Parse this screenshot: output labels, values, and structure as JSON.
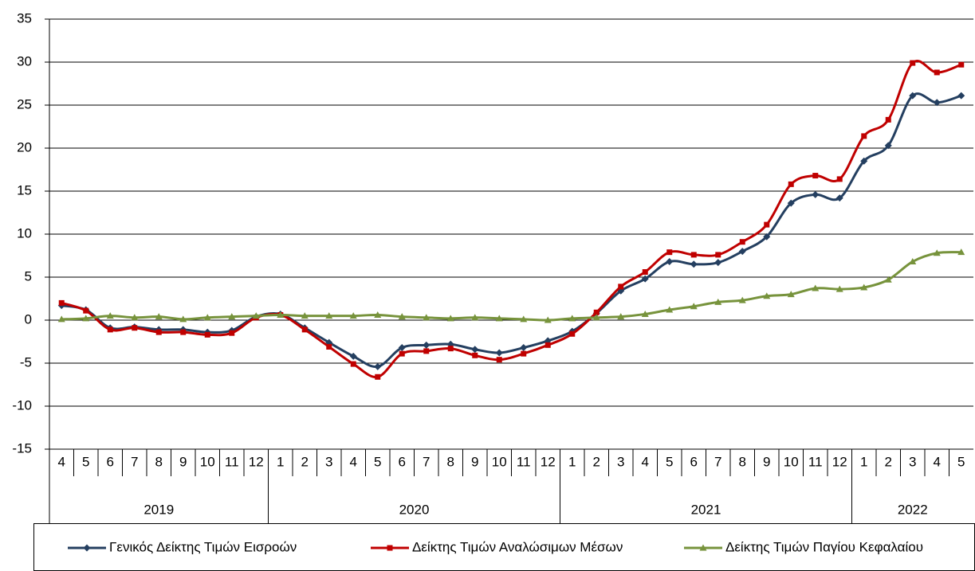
{
  "chart_data": {
    "type": "line",
    "category_groups": [
      {
        "label": "2019",
        "categories": [
          "4",
          "5",
          "6",
          "7",
          "8",
          "9",
          "10",
          "11",
          "12"
        ]
      },
      {
        "label": "2020",
        "categories": [
          "1",
          "2",
          "3",
          "4",
          "5",
          "6",
          "7",
          "8",
          "9",
          "10",
          "11",
          "12"
        ]
      },
      {
        "label": "2021",
        "categories": [
          "1",
          "2",
          "3",
          "4",
          "5",
          "6",
          "7",
          "8",
          "9",
          "10",
          "11",
          "12"
        ]
      },
      {
        "label": "2022",
        "categories": [
          "1",
          "2",
          "3",
          "4",
          "5"
        ]
      }
    ],
    "series": [
      {
        "name": "Γενικός Δείκτης Τιμών Εισροών",
        "color": "#243f60",
        "marker": "diamond",
        "values": [
          1.7,
          1.2,
          -0.9,
          -0.8,
          -1.1,
          -1.1,
          -1.4,
          -1.2,
          0.4,
          0.7,
          -0.9,
          -2.6,
          -4.2,
          -5.4,
          -3.2,
          -2.9,
          -2.8,
          -3.4,
          -3.8,
          -3.2,
          -2.4,
          -1.3,
          0.8,
          3.4,
          4.8,
          6.8,
          6.5,
          6.7,
          8.0,
          9.7,
          13.6,
          14.6,
          14.2,
          18.5,
          20.3,
          26.1,
          25.3,
          26.1
        ]
      },
      {
        "name": "Δείκτης Τιμών Αναλώσιμων Μέσων",
        "color": "#c00000",
        "marker": "square",
        "values": [
          2.0,
          1.1,
          -1.1,
          -0.9,
          -1.4,
          -1.4,
          -1.7,
          -1.5,
          0.3,
          0.6,
          -1.1,
          -3.1,
          -5.1,
          -6.6,
          -3.9,
          -3.6,
          -3.3,
          -4.1,
          -4.6,
          -3.9,
          -2.9,
          -1.6,
          0.9,
          3.9,
          5.6,
          7.9,
          7.6,
          7.6,
          9.1,
          11.1,
          15.8,
          16.8,
          16.4,
          21.4,
          23.3,
          29.9,
          28.8,
          29.7
        ]
      },
      {
        "name": "Δείκτης Τιμών Παγίου Κεφαλαίου",
        "color": "#77933c",
        "marker": "triangle",
        "values": [
          0.1,
          0.2,
          0.5,
          0.3,
          0.4,
          0.1,
          0.3,
          0.4,
          0.5,
          0.6,
          0.5,
          0.5,
          0.5,
          0.6,
          0.4,
          0.3,
          0.2,
          0.3,
          0.2,
          0.1,
          0.0,
          0.2,
          0.3,
          0.4,
          0.7,
          1.2,
          1.6,
          2.1,
          2.3,
          2.8,
          3.0,
          3.7,
          3.6,
          3.8,
          4.7,
          6.8,
          7.8,
          7.9
        ]
      }
    ],
    "ylim": [
      -15,
      35
    ],
    "yticks": [
      -15,
      -10,
      -5,
      0,
      5,
      10,
      15,
      20,
      25,
      30,
      35
    ],
    "grid": true,
    "legend": "bottom"
  }
}
